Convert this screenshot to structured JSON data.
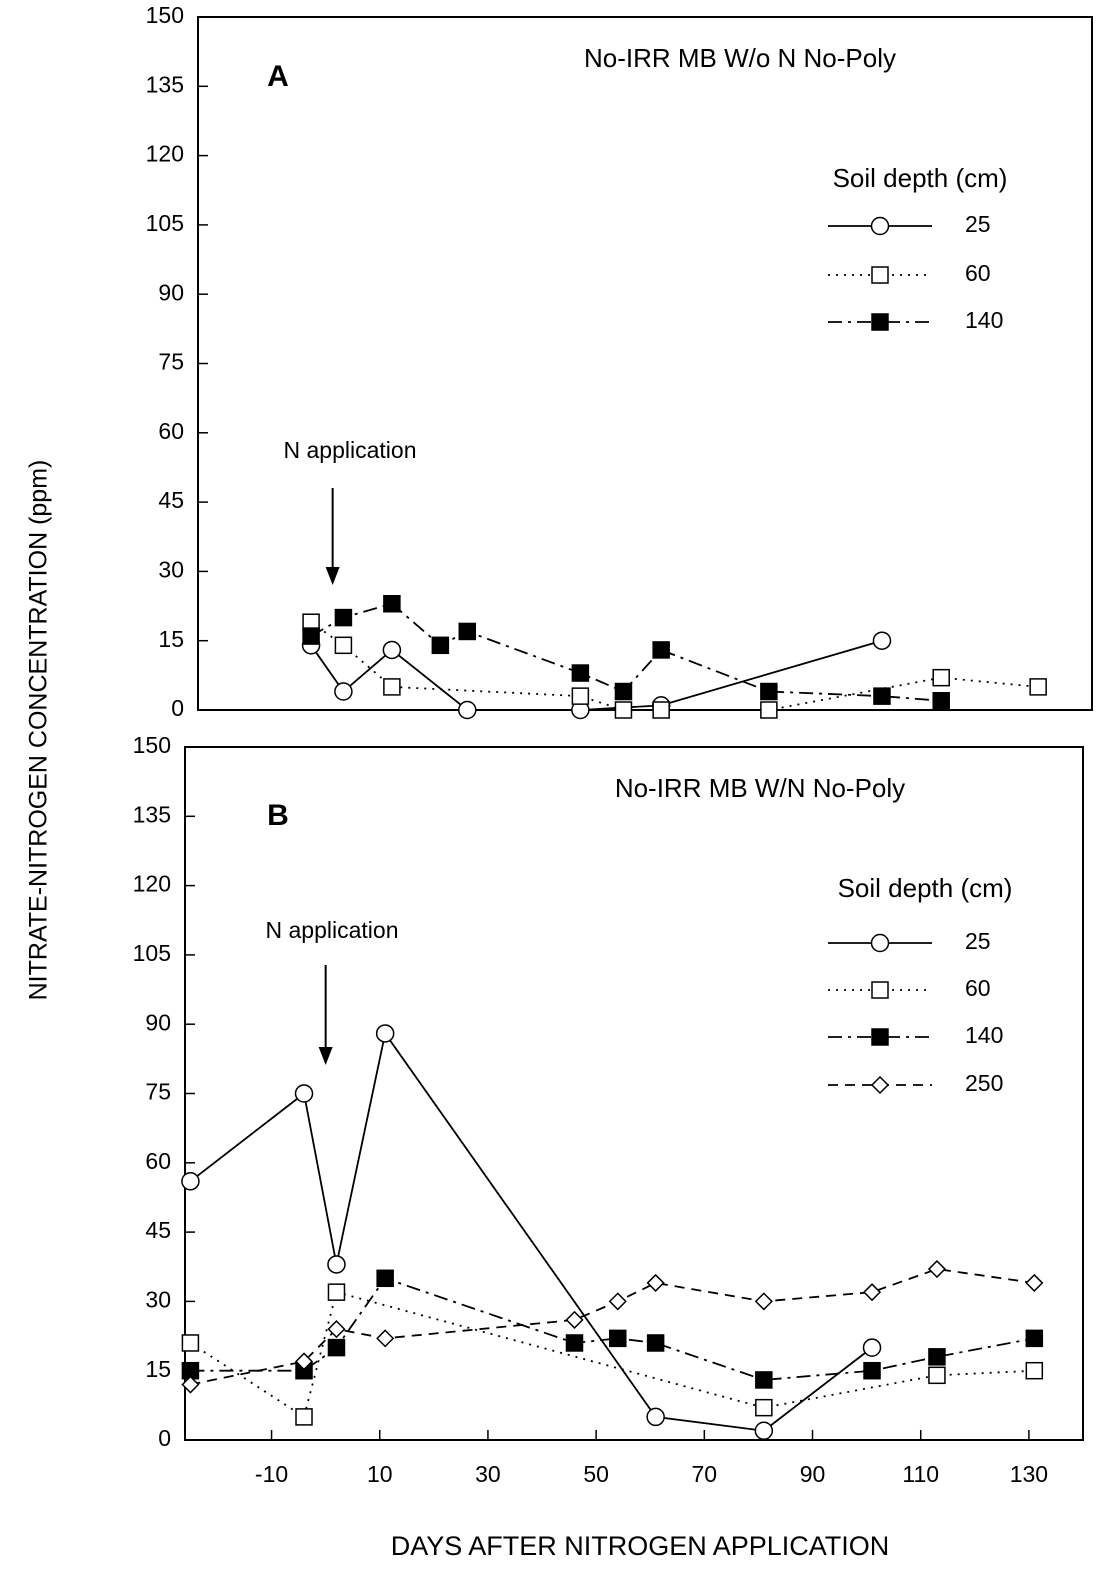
{
  "chart_data": [
    {
      "type": "line",
      "title": "No-IRR MB  W/o N No-Poly",
      "panel_label": "A",
      "ylabel": "NITRATE-NITROGEN CONCENTRATION (ppm)",
      "annotation": "N application",
      "legend_title": "Soil depth (cm)",
      "xlim": [
        -25,
        141
      ],
      "ylim": [
        0,
        150
      ],
      "yticks": [
        0,
        15,
        30,
        45,
        60,
        75,
        90,
        105,
        120,
        135,
        150
      ],
      "series": [
        {
          "name": "25",
          "color": "#000000",
          "dash": "solid",
          "marker": "open-circle",
          "x": [
            -4,
            2,
            11,
            25,
            46,
            61,
            102
          ],
          "values": [
            14,
            4,
            13,
            0,
            0,
            1,
            15
          ]
        },
        {
          "name": "60",
          "color": "#000000",
          "dash": "dotted",
          "marker": "open-square",
          "x": [
            -4,
            2,
            11,
            46,
            54,
            61,
            81,
            113,
            131
          ],
          "values": [
            19,
            14,
            5,
            3,
            0,
            0,
            0,
            7,
            5
          ]
        },
        {
          "name": "140",
          "color": "#000000",
          "dash": "dash-dot",
          "marker": "filled-square",
          "x": [
            -4,
            2,
            11,
            20,
            25,
            46,
            54,
            61,
            81,
            102,
            113
          ],
          "values": [
            16,
            20,
            23,
            14,
            17,
            8,
            4,
            13,
            4,
            3,
            2
          ]
        }
      ]
    },
    {
      "type": "line",
      "title": "No-IRR MB  W/N No-Poly",
      "panel_label": "B",
      "xlabel": "DAYS AFTER NITROGEN APPLICATION",
      "annotation": "N application",
      "legend_title": "Soil depth (cm)",
      "xlim": [
        -26,
        140
      ],
      "ylim": [
        0,
        150
      ],
      "xticks": [
        -10,
        10,
        30,
        50,
        70,
        90,
        110,
        130
      ],
      "yticks": [
        0,
        15,
        30,
        45,
        60,
        75,
        90,
        105,
        120,
        135,
        150
      ],
      "series": [
        {
          "name": "25",
          "color": "#000000",
          "dash": "solid",
          "marker": "open-circle",
          "x": [
            -25,
            -4,
            2,
            11,
            61,
            81,
            101
          ],
          "values": [
            56,
            75,
            38,
            88,
            5,
            2,
            20
          ]
        },
        {
          "name": "60",
          "color": "#000000",
          "dash": "dotted",
          "marker": "open-square",
          "x": [
            -25,
            -4,
            2,
            81,
            113,
            131
          ],
          "values": [
            21,
            5,
            32,
            7,
            14,
            15
          ]
        },
        {
          "name": "140",
          "color": "#000000",
          "dash": "dash-dot",
          "marker": "filled-square",
          "x": [
            -25,
            -4,
            2,
            11,
            46,
            54,
            61,
            81,
            101,
            113,
            131
          ],
          "values": [
            15,
            15,
            20,
            35,
            21,
            22,
            21,
            13,
            15,
            18,
            22
          ]
        },
        {
          "name": "250",
          "color": "#000000",
          "dash": "dashed",
          "marker": "open-diamond",
          "x": [
            -25,
            -4,
            2,
            11,
            46,
            54,
            61,
            81,
            101,
            113,
            131
          ],
          "values": [
            12,
            17,
            24,
            22,
            26,
            30,
            34,
            30,
            32,
            37,
            34
          ]
        }
      ]
    }
  ]
}
